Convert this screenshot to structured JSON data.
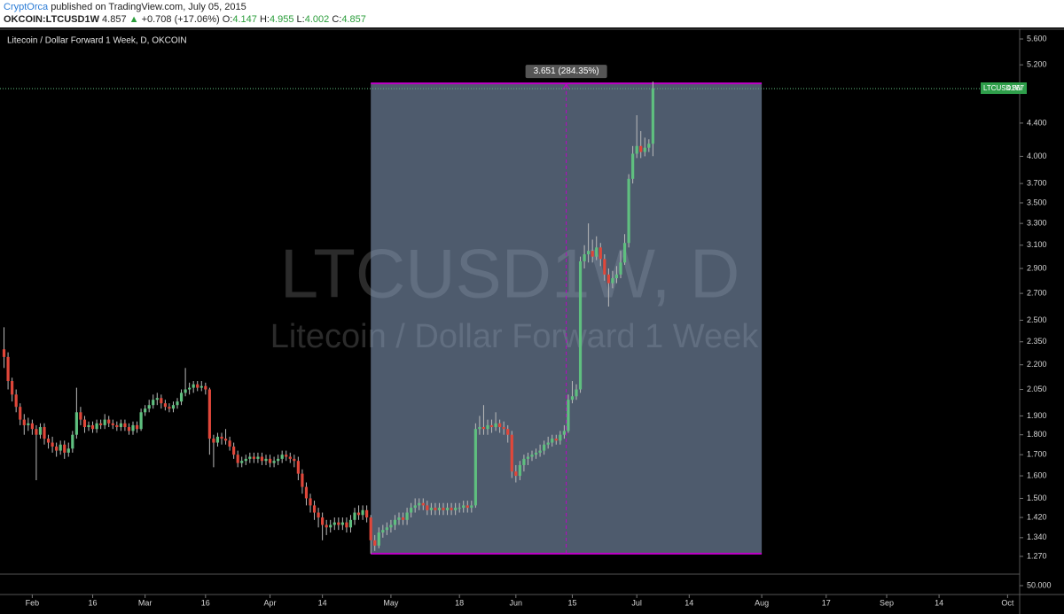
{
  "header": {
    "author": "CryptOrca",
    "published": "published on TradingView.com, July 05, 2015",
    "symbol": "OKCOIN:LTCUSD1W",
    "change": "+0.708 (+17.06%)",
    "open_label": "O:",
    "high_label": "H:",
    "low_label": "L:",
    "close_label": "C:"
  },
  "chart_data": {
    "type": "candlestick",
    "title": "Litecoin / Dollar Forward 1 Week, D, OKCOIN",
    "watermark_symbol": "LTCUSD1W, D",
    "watermark_description": "Litecoin / Dollar Forward 1 Week",
    "price_label": "LTCUSD1W",
    "log_scale": true,
    "up_color": "#5fbf7f",
    "down_color": "#e0473a",
    "x": [
      "2015-01-25",
      "2015-01-26",
      "2015-01-27",
      "2015-01-28",
      "2015-01-29",
      "2015-01-30",
      "2015-01-31",
      "2015-02-01",
      "2015-02-02",
      "2015-02-03",
      "2015-02-04",
      "2015-02-05",
      "2015-02-06",
      "2015-02-07",
      "2015-02-08",
      "2015-02-09",
      "2015-02-10",
      "2015-02-11",
      "2015-02-12",
      "2015-02-13",
      "2015-02-14",
      "2015-02-15",
      "2015-02-16",
      "2015-02-17",
      "2015-02-18",
      "2015-02-19",
      "2015-02-20",
      "2015-02-21",
      "2015-02-22",
      "2015-02-23",
      "2015-02-24",
      "2015-02-25",
      "2015-02-26",
      "2015-02-27",
      "2015-02-28",
      "2015-03-01",
      "2015-03-02",
      "2015-03-03",
      "2015-03-04",
      "2015-03-05",
      "2015-03-06",
      "2015-03-07",
      "2015-03-08",
      "2015-03-09",
      "2015-03-10",
      "2015-03-11",
      "2015-03-12",
      "2015-03-13",
      "2015-03-14",
      "2015-03-15",
      "2015-03-16",
      "2015-03-17",
      "2015-03-18",
      "2015-03-19",
      "2015-03-20",
      "2015-03-21",
      "2015-03-22",
      "2015-03-23",
      "2015-03-24",
      "2015-03-25",
      "2015-03-26",
      "2015-03-27",
      "2015-03-28",
      "2015-03-29",
      "2015-03-30",
      "2015-03-31",
      "2015-04-01",
      "2015-04-02",
      "2015-04-03",
      "2015-04-04",
      "2015-04-05",
      "2015-04-06",
      "2015-04-07",
      "2015-04-08",
      "2015-04-09",
      "2015-04-10",
      "2015-04-11",
      "2015-04-12",
      "2015-04-13",
      "2015-04-14",
      "2015-04-15",
      "2015-04-16",
      "2015-04-17",
      "2015-04-18",
      "2015-04-19",
      "2015-04-20",
      "2015-04-21",
      "2015-04-22",
      "2015-04-23",
      "2015-04-24",
      "2015-04-25",
      "2015-04-26",
      "2015-04-27",
      "2015-04-28",
      "2015-04-29",
      "2015-04-30",
      "2015-05-01",
      "2015-05-02",
      "2015-05-03",
      "2015-05-04",
      "2015-05-05",
      "2015-05-06",
      "2015-05-07",
      "2015-05-08",
      "2015-05-09",
      "2015-05-10",
      "2015-05-11",
      "2015-05-12",
      "2015-05-13",
      "2015-05-14",
      "2015-05-15",
      "2015-05-16",
      "2015-05-17",
      "2015-05-18",
      "2015-05-19",
      "2015-05-20",
      "2015-05-21",
      "2015-05-22",
      "2015-05-23",
      "2015-05-24",
      "2015-05-25",
      "2015-05-26",
      "2015-05-27",
      "2015-05-28",
      "2015-05-29",
      "2015-05-30",
      "2015-05-31",
      "2015-06-01",
      "2015-06-02",
      "2015-06-03",
      "2015-06-04",
      "2015-06-05",
      "2015-06-06",
      "2015-06-07",
      "2015-06-08",
      "2015-06-09",
      "2015-06-10",
      "2015-06-11",
      "2015-06-12",
      "2015-06-13",
      "2015-06-14",
      "2015-06-15",
      "2015-06-16",
      "2015-06-17",
      "2015-06-18",
      "2015-06-19",
      "2015-06-20",
      "2015-06-21",
      "2015-06-22",
      "2015-06-23",
      "2015-06-24",
      "2015-06-25",
      "2015-06-26",
      "2015-06-27",
      "2015-06-28",
      "2015-06-29",
      "2015-06-30",
      "2015-07-01",
      "2015-07-02",
      "2015-07-03",
      "2015-07-04",
      "2015-07-05"
    ],
    "open": [
      2.3,
      2.25,
      2.1,
      2.02,
      1.95,
      1.88,
      1.85,
      1.86,
      1.83,
      1.8,
      1.84,
      1.78,
      1.76,
      1.74,
      1.72,
      1.75,
      1.71,
      1.73,
      1.8,
      1.92,
      1.88,
      1.84,
      1.85,
      1.83,
      1.86,
      1.85,
      1.88,
      1.86,
      1.85,
      1.84,
      1.86,
      1.84,
      1.82,
      1.85,
      1.83,
      1.92,
      1.94,
      1.96,
      1.99,
      2.0,
      1.97,
      1.95,
      1.94,
      1.96,
      1.98,
      2.03,
      2.05,
      2.06,
      2.08,
      2.06,
      2.07,
      2.05,
      1.78,
      1.76,
      1.79,
      1.78,
      1.77,
      1.74,
      1.7,
      1.66,
      1.67,
      1.68,
      1.69,
      1.68,
      1.69,
      1.67,
      1.68,
      1.66,
      1.67,
      1.68,
      1.7,
      1.69,
      1.68,
      1.67,
      1.61,
      1.55,
      1.5,
      1.47,
      1.44,
      1.42,
      1.39,
      1.38,
      1.39,
      1.4,
      1.39,
      1.4,
      1.38,
      1.41,
      1.44,
      1.43,
      1.45,
      1.42,
      1.33,
      1.31,
      1.36,
      1.37,
      1.38,
      1.39,
      1.41,
      1.42,
      1.41,
      1.44,
      1.46,
      1.47,
      1.48,
      1.47,
      1.45,
      1.46,
      1.45,
      1.46,
      1.45,
      1.46,
      1.45,
      1.46,
      1.46,
      1.47,
      1.46,
      1.47,
      1.83,
      1.84,
      1.83,
      1.85,
      1.84,
      1.86,
      1.84,
      1.83,
      1.8,
      1.62,
      1.6,
      1.65,
      1.68,
      1.69,
      1.7,
      1.71,
      1.72,
      1.75,
      1.76,
      1.78,
      1.77,
      1.8,
      1.82,
      1.99,
      2.01,
      2.05,
      2.96,
      3.02,
      3.05,
      3.0,
      3.08,
      2.98,
      2.85,
      2.78,
      2.82,
      2.85,
      2.95,
      3.12,
      3.75,
      4.03,
      4.12,
      4.05,
      4.1,
      4.147
    ],
    "high": [
      2.45,
      2.28,
      2.12,
      2.05,
      1.97,
      1.91,
      1.89,
      1.88,
      1.85,
      1.86,
      1.86,
      1.8,
      1.79,
      1.76,
      1.77,
      1.77,
      1.76,
      1.82,
      2.06,
      1.95,
      1.9,
      1.87,
      1.87,
      1.88,
      1.88,
      1.91,
      1.9,
      1.88,
      1.87,
      1.88,
      1.88,
      1.86,
      1.87,
      1.87,
      1.94,
      1.96,
      1.99,
      2.02,
      2.03,
      2.02,
      1.99,
      1.97,
      1.98,
      2.0,
      2.05,
      2.18,
      2.09,
      2.1,
      2.1,
      2.1,
      2.09,
      2.06,
      1.8,
      1.81,
      1.81,
      1.83,
      1.79,
      1.76,
      1.72,
      1.69,
      1.7,
      1.71,
      1.71,
      1.71,
      1.71,
      1.7,
      1.7,
      1.69,
      1.7,
      1.72,
      1.72,
      1.71,
      1.7,
      1.69,
      1.63,
      1.57,
      1.52,
      1.49,
      1.46,
      1.44,
      1.41,
      1.41,
      1.42,
      1.42,
      1.42,
      1.42,
      1.43,
      1.46,
      1.47,
      1.47,
      1.47,
      1.43,
      1.35,
      1.38,
      1.39,
      1.4,
      1.41,
      1.43,
      1.44,
      1.44,
      1.46,
      1.48,
      1.5,
      1.5,
      1.5,
      1.49,
      1.48,
      1.48,
      1.48,
      1.48,
      1.48,
      1.48,
      1.48,
      1.48,
      1.49,
      1.49,
      1.49,
      1.86,
      1.9,
      1.96,
      1.88,
      1.88,
      1.92,
      1.88,
      1.87,
      1.85,
      1.82,
      1.65,
      1.67,
      1.7,
      1.71,
      1.72,
      1.73,
      1.75,
      1.77,
      1.79,
      1.8,
      1.8,
      1.82,
      1.85,
      2.02,
      2.1,
      2.08,
      3.0,
      3.1,
      3.3,
      3.15,
      3.18,
      3.12,
      3.02,
      2.9,
      2.88,
      2.92,
      3.05,
      3.2,
      3.8,
      4.12,
      4.5,
      4.3,
      4.22,
      4.2,
      4.955
    ],
    "low": [
      2.18,
      2.05,
      1.98,
      1.92,
      1.85,
      1.8,
      1.82,
      1.8,
      1.58,
      1.78,
      1.75,
      1.73,
      1.71,
      1.69,
      1.7,
      1.68,
      1.69,
      1.71,
      1.78,
      1.85,
      1.81,
      1.82,
      1.81,
      1.81,
      1.83,
      1.83,
      1.84,
      1.83,
      1.82,
      1.82,
      1.82,
      1.8,
      1.8,
      1.81,
      1.82,
      1.9,
      1.92,
      1.94,
      1.96,
      1.94,
      1.93,
      1.92,
      1.92,
      1.94,
      1.96,
      2.01,
      2.02,
      2.03,
      2.04,
      2.04,
      2.02,
      1.7,
      1.64,
      1.74,
      1.75,
      1.75,
      1.72,
      1.68,
      1.64,
      1.64,
      1.65,
      1.66,
      1.66,
      1.66,
      1.65,
      1.65,
      1.64,
      1.64,
      1.65,
      1.66,
      1.67,
      1.66,
      1.64,
      1.58,
      1.52,
      1.47,
      1.44,
      1.41,
      1.38,
      1.33,
      1.35,
      1.36,
      1.37,
      1.37,
      1.37,
      1.36,
      1.36,
      1.39,
      1.41,
      1.41,
      1.4,
      1.28,
      1.29,
      1.3,
      1.34,
      1.35,
      1.36,
      1.37,
      1.39,
      1.39,
      1.39,
      1.42,
      1.44,
      1.45,
      1.45,
      1.43,
      1.43,
      1.43,
      1.43,
      1.43,
      1.43,
      1.43,
      1.43,
      1.44,
      1.44,
      1.44,
      1.44,
      1.46,
      1.8,
      1.8,
      1.8,
      1.81,
      1.82,
      1.81,
      1.8,
      1.76,
      1.59,
      1.57,
      1.58,
      1.62,
      1.65,
      1.67,
      1.68,
      1.69,
      1.7,
      1.73,
      1.74,
      1.75,
      1.75,
      1.78,
      1.81,
      1.97,
      1.99,
      2.03,
      2.9,
      2.95,
      2.95,
      2.97,
      2.92,
      2.8,
      2.6,
      2.74,
      2.78,
      2.82,
      2.93,
      3.08,
      3.7,
      3.98,
      3.98,
      4.0,
      4.05,
      4.002
    ],
    "close": [
      2.25,
      2.1,
      2.02,
      1.95,
      1.88,
      1.85,
      1.86,
      1.83,
      1.8,
      1.84,
      1.78,
      1.76,
      1.74,
      1.72,
      1.75,
      1.71,
      1.73,
      1.8,
      1.92,
      1.88,
      1.84,
      1.85,
      1.83,
      1.86,
      1.85,
      1.88,
      1.86,
      1.85,
      1.84,
      1.86,
      1.84,
      1.82,
      1.85,
      1.83,
      1.92,
      1.94,
      1.96,
      1.99,
      2.0,
      1.97,
      1.95,
      1.94,
      1.96,
      1.98,
      2.03,
      2.05,
      2.06,
      2.08,
      2.06,
      2.07,
      2.05,
      1.78,
      1.76,
      1.79,
      1.78,
      1.77,
      1.74,
      1.7,
      1.66,
      1.67,
      1.68,
      1.69,
      1.68,
      1.69,
      1.67,
      1.68,
      1.66,
      1.67,
      1.68,
      1.7,
      1.69,
      1.68,
      1.67,
      1.61,
      1.55,
      1.5,
      1.47,
      1.44,
      1.42,
      1.39,
      1.38,
      1.39,
      1.4,
      1.39,
      1.4,
      1.38,
      1.41,
      1.44,
      1.43,
      1.45,
      1.42,
      1.33,
      1.31,
      1.36,
      1.37,
      1.38,
      1.39,
      1.41,
      1.42,
      1.41,
      1.44,
      1.46,
      1.47,
      1.48,
      1.47,
      1.45,
      1.46,
      1.45,
      1.46,
      1.45,
      1.46,
      1.45,
      1.46,
      1.46,
      1.47,
      1.46,
      1.47,
      1.83,
      1.84,
      1.83,
      1.85,
      1.84,
      1.86,
      1.84,
      1.83,
      1.8,
      1.62,
      1.6,
      1.65,
      1.68,
      1.69,
      1.7,
      1.71,
      1.72,
      1.75,
      1.76,
      1.78,
      1.77,
      1.8,
      1.82,
      1.99,
      2.01,
      2.05,
      2.96,
      3.02,
      3.05,
      3.0,
      3.08,
      2.98,
      2.85,
      2.78,
      2.82,
      2.85,
      2.95,
      3.12,
      3.75,
      4.03,
      4.12,
      4.05,
      4.1,
      4.147,
      4.857
    ],
    "xlim": [
      "2015-01-24",
      "2015-10-04"
    ],
    "xticks": [
      {
        "value": "2015-02-01",
        "label": "Feb"
      },
      {
        "value": "2015-02-16",
        "label": "16"
      },
      {
        "value": "2015-03-01",
        "label": "Mar"
      },
      {
        "value": "2015-03-16",
        "label": "16"
      },
      {
        "value": "2015-04-01",
        "label": "Apr"
      },
      {
        "value": "2015-04-14",
        "label": "14"
      },
      {
        "value": "2015-05-01",
        "label": "May"
      },
      {
        "value": "2015-05-18",
        "label": "18"
      },
      {
        "value": "2015-06-01",
        "label": "Jun"
      },
      {
        "value": "2015-06-15",
        "label": "15"
      },
      {
        "value": "2015-07-01",
        "label": "Jul"
      },
      {
        "value": "2015-07-14",
        "label": "14"
      },
      {
        "value": "2015-08-01",
        "label": "Aug"
      },
      {
        "value": "2015-08-17",
        "label": "17"
      },
      {
        "value": "2015-09-01",
        "label": "Sep"
      },
      {
        "value": "2015-09-14",
        "label": "14"
      },
      {
        "value": "2015-10-01",
        "label": "Oct"
      }
    ],
    "ylim": [
      1.207,
      5.744
    ],
    "yticks": [
      {
        "value": 5.6,
        "label": "5.600"
      },
      {
        "value": 5.2,
        "label": "5.200"
      },
      {
        "value": 4.4,
        "label": "4.400"
      },
      {
        "value": 4,
        "label": "4.000"
      },
      {
        "value": 3.7,
        "label": "3.700"
      },
      {
        "value": 3.5,
        "label": "3.500"
      },
      {
        "value": 3.3,
        "label": "3.300"
      },
      {
        "value": 3.1,
        "label": "3.100"
      },
      {
        "value": 2.9,
        "label": "2.900"
      },
      {
        "value": 2.7,
        "label": "2.700"
      },
      {
        "value": 2.5,
        "label": "2.500"
      },
      {
        "value": 2.35,
        "label": "2.350"
      },
      {
        "value": 2.2,
        "label": "2.200"
      },
      {
        "value": 2.05,
        "label": "2.050"
      },
      {
        "value": 1.9,
        "label": "1.900"
      },
      {
        "value": 1.8,
        "label": "1.800"
      },
      {
        "value": 1.7,
        "label": "1.700"
      },
      {
        "value": 1.6,
        "label": "1.600"
      },
      {
        "value": 1.5,
        "label": "1.500"
      },
      {
        "value": 1.42,
        "label": "1.420"
      },
      {
        "value": 1.34,
        "label": "1.340"
      },
      {
        "value": 1.27,
        "label": "1.270"
      }
    ],
    "volume_yticks": [
      {
        "value": 50000,
        "label": "50.000"
      }
    ],
    "measure": {
      "label": "3.651 (284.35%)",
      "from_x": "2015-04-26",
      "to_x": "2015-08-01",
      "from_price": 1.28,
      "to_price": 4.931
    }
  }
}
